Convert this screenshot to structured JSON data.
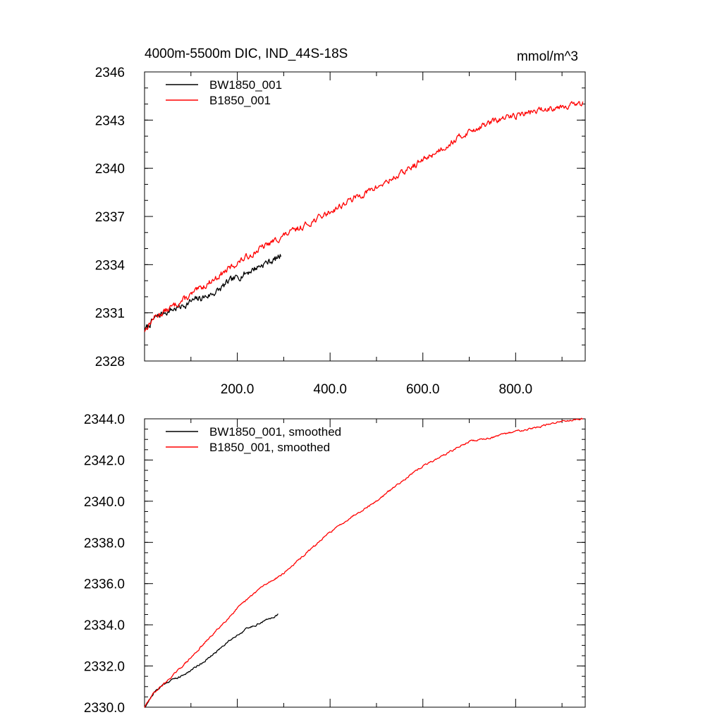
{
  "figure": {
    "title": "4000m-5500m DIC, IND_44S-18S",
    "units": "mmol/m^3"
  },
  "chart_data": [
    {
      "type": "line",
      "xlim": [
        0,
        950
      ],
      "ylim": [
        2328,
        2346
      ],
      "x_ticks": [
        200,
        400,
        600,
        800
      ],
      "x_tick_labels": [
        "200.0",
        "400.0",
        "600.0",
        "800.0"
      ],
      "x_minor_ticks": [
        100,
        300,
        500,
        700,
        900
      ],
      "y_ticks": [
        2328,
        2331,
        2334,
        2337,
        2340,
        2343,
        2346
      ],
      "y_tick_labels": [
        "2328",
        "2331",
        "2334",
        "2337",
        "2340",
        "2343",
        "2346"
      ],
      "y_minor_step": 1,
      "legend_position": "top-left",
      "grid": false,
      "series": [
        {
          "name": "BW1850_001",
          "color": "#000000",
          "x_max": 295,
          "anchors": [
            [
              0,
              2329.9
            ],
            [
              20,
              2330.6
            ],
            [
              40,
              2331.0
            ],
            [
              60,
              2331.2
            ],
            [
              80,
              2331.4
            ],
            [
              100,
              2331.7
            ],
            [
              120,
              2331.9
            ],
            [
              140,
              2332.1
            ],
            [
              160,
              2332.4
            ],
            [
              180,
              2332.9
            ],
            [
              200,
              2333.2
            ],
            [
              220,
              2333.5
            ],
            [
              240,
              2333.8
            ],
            [
              260,
              2334.1
            ],
            [
              280,
              2334.3
            ],
            [
              295,
              2334.6
            ]
          ],
          "noise": 0.18,
          "seed": 7
        },
        {
          "name": "B1850_001",
          "color": "#ff0000",
          "x_max": 945,
          "anchors": [
            [
              0,
              2329.9
            ],
            [
              20,
              2330.7
            ],
            [
              50,
              2331.2
            ],
            [
              100,
              2332.1
            ],
            [
              150,
              2333.1
            ],
            [
              200,
              2334.1
            ],
            [
              250,
              2335.0
            ],
            [
              300,
              2335.8
            ],
            [
              350,
              2336.5
            ],
            [
              400,
              2337.3
            ],
            [
              450,
              2338.1
            ],
            [
              500,
              2338.8
            ],
            [
              550,
              2339.6
            ],
            [
              600,
              2340.5
            ],
            [
              650,
              2341.4
            ],
            [
              700,
              2342.3
            ],
            [
              750,
              2342.9
            ],
            [
              800,
              2343.3
            ],
            [
              850,
              2343.6
            ],
            [
              900,
              2343.9
            ],
            [
              945,
              2344.0
            ]
          ],
          "noise": 0.16,
          "seed": 13
        }
      ]
    },
    {
      "type": "line",
      "xlim": [
        0,
        950
      ],
      "ylim": [
        2330,
        2344
      ],
      "x_ticks": [
        200,
        400,
        600,
        800
      ],
      "x_tick_labels": [],
      "x_minor_ticks": [
        100,
        300,
        500,
        700,
        900
      ],
      "y_ticks": [
        2330,
        2332,
        2334,
        2336,
        2338,
        2340,
        2342,
        2344
      ],
      "y_tick_labels": [
        "2330.0",
        "2332.0",
        "2334.0",
        "2336.0",
        "2338.0",
        "2340.0",
        "2342.0",
        "2344.0"
      ],
      "y_minor_step": 0.5,
      "legend_position": "top-left",
      "grid": false,
      "series": [
        {
          "name": "BW1850_001, smoothed",
          "color": "#000000",
          "x_max": 288,
          "anchors": [
            [
              0,
              2330.0
            ],
            [
              20,
              2330.7
            ],
            [
              40,
              2331.1
            ],
            [
              60,
              2331.35
            ],
            [
              80,
              2331.5
            ],
            [
              100,
              2331.8
            ],
            [
              120,
              2332.1
            ],
            [
              140,
              2332.4
            ],
            [
              160,
              2332.8
            ],
            [
              180,
              2333.2
            ],
            [
              200,
              2333.5
            ],
            [
              220,
              2333.8
            ],
            [
              240,
              2334.0
            ],
            [
              260,
              2334.2
            ],
            [
              288,
              2334.5
            ]
          ],
          "noise": 0.04,
          "seed": 21
        },
        {
          "name": "B1850_001, smoothed",
          "color": "#ff0000",
          "x_max": 945,
          "anchors": [
            [
              0,
              2330.0
            ],
            [
              20,
              2330.7
            ],
            [
              50,
              2331.3
            ],
            [
              100,
              2332.4
            ],
            [
              150,
              2333.6
            ],
            [
              200,
              2334.8
            ],
            [
              250,
              2335.8
            ],
            [
              300,
              2336.5
            ],
            [
              350,
              2337.5
            ],
            [
              400,
              2338.5
            ],
            [
              450,
              2339.3
            ],
            [
              500,
              2340.0
            ],
            [
              550,
              2340.9
            ],
            [
              600,
              2341.7
            ],
            [
              650,
              2342.3
            ],
            [
              700,
              2342.9
            ],
            [
              750,
              2343.1
            ],
            [
              800,
              2343.4
            ],
            [
              850,
              2343.6
            ],
            [
              900,
              2343.9
            ],
            [
              945,
              2344.0
            ]
          ],
          "noise": 0.035,
          "seed": 29
        }
      ]
    }
  ]
}
